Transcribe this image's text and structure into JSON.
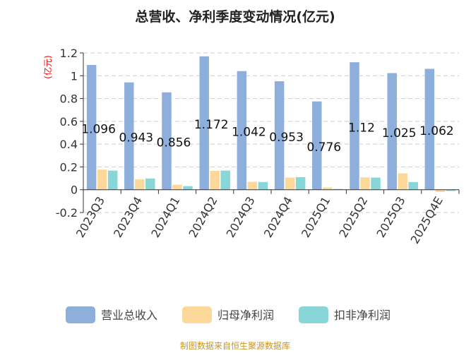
{
  "chart_data": {
    "type": "bar",
    "title": "总营收、净利季度变动情况(亿元)",
    "ylabel": "(亿元)",
    "xlabel": "",
    "ylim": [
      -0.2,
      1.2
    ],
    "yticks": [
      "1.2",
      "1",
      "0.8",
      "0.6",
      "0.4",
      "0.2",
      "0",
      "-0.2"
    ],
    "ytick_values": [
      1.2,
      1.0,
      0.8,
      0.6,
      0.4,
      0.2,
      0,
      -0.2
    ],
    "grid": true,
    "legend_position": "bottom",
    "categories": [
      "2023Q3",
      "2023Q4",
      "2024Q1",
      "2024Q2",
      "2024Q3",
      "2024Q4",
      "2025Q1",
      "2025Q2",
      "2025Q3",
      "2025Q4E"
    ],
    "series": [
      {
        "name": "营业总收入",
        "color": "#8eaedc",
        "values": [
          1.096,
          0.943,
          0.856,
          1.172,
          1.042,
          0.953,
          0.776,
          1.12,
          1.025,
          1.062
        ],
        "labels": [
          "1.096",
          "0.943",
          "0.856",
          "1.172",
          "1.042",
          "0.953",
          "0.776",
          "1.12",
          "1.025",
          "1.062"
        ]
      },
      {
        "name": "归母净利润",
        "color": "#fdd89b",
        "values": [
          0.178,
          0.092,
          0.045,
          0.167,
          0.071,
          0.108,
          0.022,
          0.11,
          0.145,
          -0.022
        ]
      },
      {
        "name": "扣非净利润",
        "color": "#88d6d8",
        "values": [
          0.169,
          0.1,
          0.033,
          0.169,
          0.069,
          0.112,
          0.008,
          0.108,
          0.069,
          -0.012
        ]
      }
    ]
  },
  "source_note": "制图数据来自恒生聚源数据库",
  "colors": {
    "ylabel": "#ff0000",
    "source": "#c8962a"
  }
}
